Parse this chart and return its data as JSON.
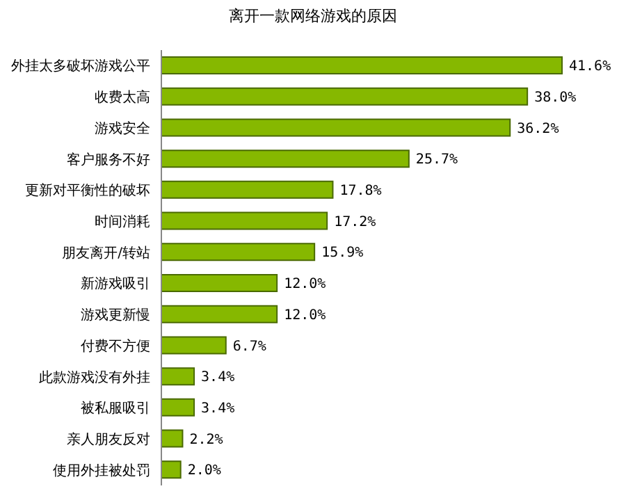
{
  "chart_data": {
    "type": "bar",
    "orientation": "horizontal",
    "title": "离开一款网络游戏的原因",
    "categories": [
      "外挂太多破坏游戏公平",
      "收费太高",
      "游戏安全",
      "客户服务不好",
      "更新对平衡性的破坏",
      "时间消耗",
      "朋友离开/转站",
      "新游戏吸引",
      "游戏更新慢",
      "付费不方便",
      "此款游戏没有外挂",
      "被私服吸引",
      "亲人朋友反对",
      "使用外挂被处罚"
    ],
    "values": [
      41.6,
      38.0,
      36.2,
      25.7,
      17.8,
      17.2,
      15.9,
      12.0,
      12.0,
      6.7,
      3.4,
      3.4,
      2.2,
      2.0
    ],
    "value_labels": [
      "41.6%",
      "38.0%",
      "36.2%",
      "25.7%",
      "17.8%",
      "17.2%",
      "15.9%",
      "12.0%",
      "12.0%",
      "6.7%",
      "3.4%",
      "3.4%",
      "2.2%",
      "2.0%"
    ],
    "color": "#86b800",
    "tick_labels": "y"
  }
}
